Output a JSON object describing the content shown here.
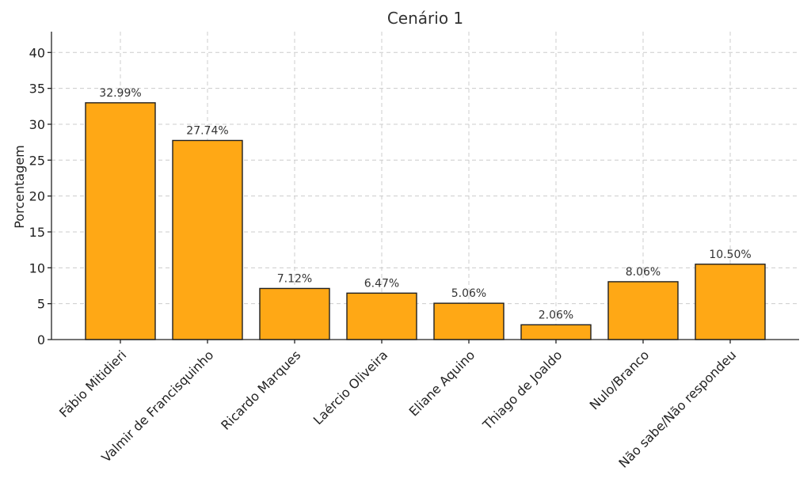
{
  "chart_data": {
    "type": "bar",
    "title": "Cenário 1",
    "xlabel": "",
    "ylabel": "Porcentagem",
    "categories": [
      "Fábio Mitidieri",
      "Valmir de Francisquinho",
      "Ricardo Marques",
      "Laércio Oliveira",
      "Eliane Aquino",
      "Thiago de Joaldo",
      "Nulo/Branco",
      "Não sabe/Não respondeu"
    ],
    "values": [
      32.99,
      27.74,
      7.12,
      6.47,
      5.06,
      2.06,
      8.06,
      10.5
    ],
    "data_labels": [
      "32.99%",
      "27.74%",
      "7.12%",
      "6.47%",
      "5.06%",
      "2.06%",
      "8.06%",
      "10.50%"
    ],
    "yticks": [
      0,
      5,
      10,
      15,
      20,
      25,
      30,
      35,
      40
    ],
    "ylim": [
      0,
      42.9
    ],
    "grid": true,
    "colors": {
      "bar": "#FFA815",
      "edge": "#1f1f1f"
    }
  }
}
